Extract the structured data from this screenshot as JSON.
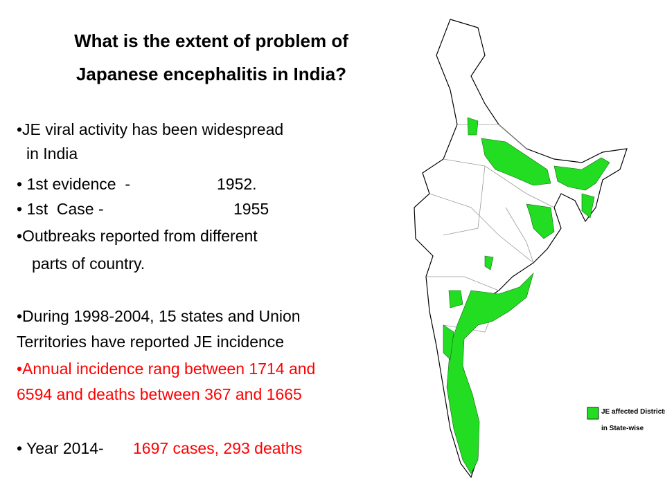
{
  "title": {
    "lines": [
      "What is the extent of problem of",
      "Japanese encephalitis in India?"
    ]
  },
  "body": {
    "lines": [
      [
        "•JE viral activity has been widespread"
      ],
      [
        "in India"
      ],
      [
        "• 1st evidence  -",
        "1952."
      ],
      [
        "• 1st  Case -",
        "1955"
      ],
      [
        "•Outbreaks reported from different"
      ],
      [
        "parts of country."
      ],
      [
        "•During 1998-2004, 15 states and Union"
      ],
      [
        "Territories have reported JE incidence"
      ],
      [
        "•Annual incidence rang between 1714 and"
      ],
      [
        "6594 and deaths between 367 and 1665"
      ],
      [
        "• Year 2014- ",
        "1697 cases, 293 deaths"
      ]
    ]
  },
  "legend": {
    "lines": [
      "JE affected Districts",
      "in State-wise"
    ]
  }
}
